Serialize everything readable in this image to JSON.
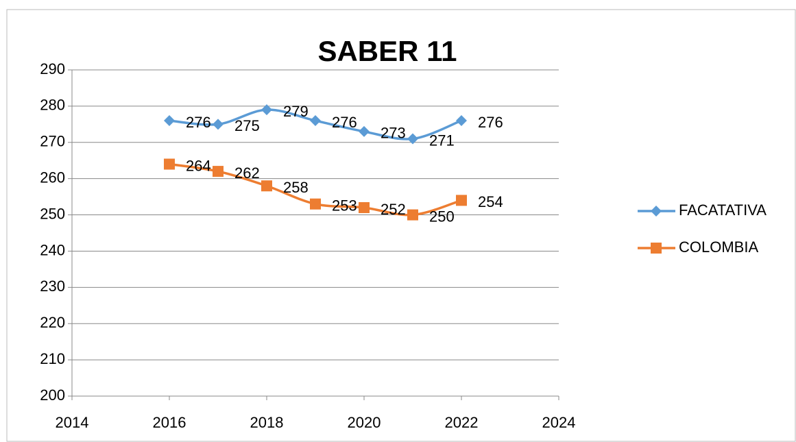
{
  "chart_data": {
    "type": "line",
    "title": "SABER 11",
    "x": [
      2016,
      2017,
      2018,
      2019,
      2020,
      2021,
      2022
    ],
    "series": [
      {
        "name": "FACATATIVA",
        "color": "#5b9bd5",
        "marker": "diamond",
        "values": [
          276,
          275,
          279,
          276,
          273,
          271,
          276
        ]
      },
      {
        "name": "COLOMBIA",
        "color": "#ed7d31",
        "marker": "square",
        "values": [
          264,
          262,
          258,
          253,
          252,
          250,
          254
        ]
      }
    ],
    "xlim": [
      2014,
      2024
    ],
    "xticks": [
      2014,
      2016,
      2018,
      2020,
      2022,
      2024
    ],
    "ylim": [
      200,
      290
    ],
    "yticks": [
      200,
      210,
      220,
      230,
      240,
      250,
      260,
      270,
      280,
      290
    ],
    "grid": true,
    "smooth": true,
    "legend": "right",
    "data_labels": true
  }
}
